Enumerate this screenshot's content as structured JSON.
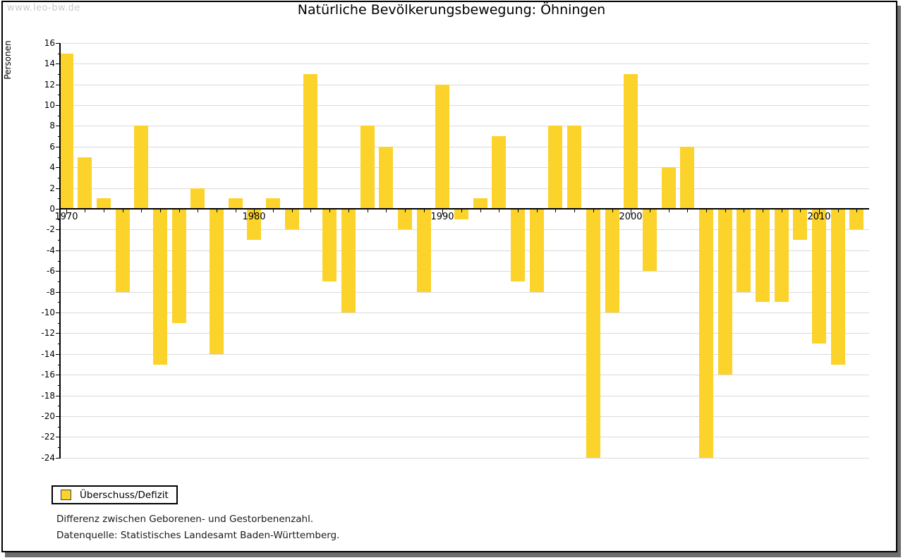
{
  "watermark": "www.leo-bw.de",
  "title": "Natürliche Bevölkerungsbewegung: Öhningen",
  "ylabel": "Personen",
  "legend": {
    "label": "Überschuss/Defizit"
  },
  "notes": {
    "definition": "Differenz zwischen Geborenen- und Gestorbenenzahl.",
    "source": "Datenquelle: Statistisches Landesamt Baden-Württemberg."
  },
  "colors": {
    "bar": "#fcd32b",
    "grid": "#dadada",
    "axis": "#000000",
    "watermark": "#c8c8c8",
    "shadow": "#6e6e6e"
  },
  "chart_data": {
    "type": "bar",
    "title": "Natürliche Bevölkerungsbewegung: Öhningen",
    "ylabel": "Personen",
    "series_name": "Überschuss/Defizit",
    "ylim": [
      -24,
      16
    ],
    "ytick_step": 2,
    "grid": true,
    "legend_position": "bottom-left",
    "xticks_labeled": [
      1970,
      1980,
      1990,
      2000,
      2010
    ],
    "x": [
      1970,
      1971,
      1972,
      1973,
      1974,
      1975,
      1976,
      1977,
      1978,
      1979,
      1980,
      1981,
      1982,
      1983,
      1984,
      1985,
      1986,
      1987,
      1988,
      1989,
      1990,
      1991,
      1992,
      1993,
      1994,
      1995,
      1996,
      1997,
      1998,
      1999,
      2000,
      2001,
      2002,
      2003,
      2004,
      2005,
      2006,
      2007,
      2008,
      2009,
      2010,
      2011,
      2012
    ],
    "values": [
      15,
      5,
      1,
      -8,
      8,
      -15,
      -11,
      2,
      -14,
      1,
      -3,
      1,
      -2,
      13,
      -7,
      -10,
      8,
      6,
      -2,
      -8,
      12,
      -1,
      1,
      7,
      -7,
      -8,
      8,
      8,
      -24,
      -10,
      13,
      -6,
      4,
      6,
      -24,
      -16,
      -8,
      -9,
      -9,
      -3,
      -13,
      -15,
      -2
    ]
  }
}
